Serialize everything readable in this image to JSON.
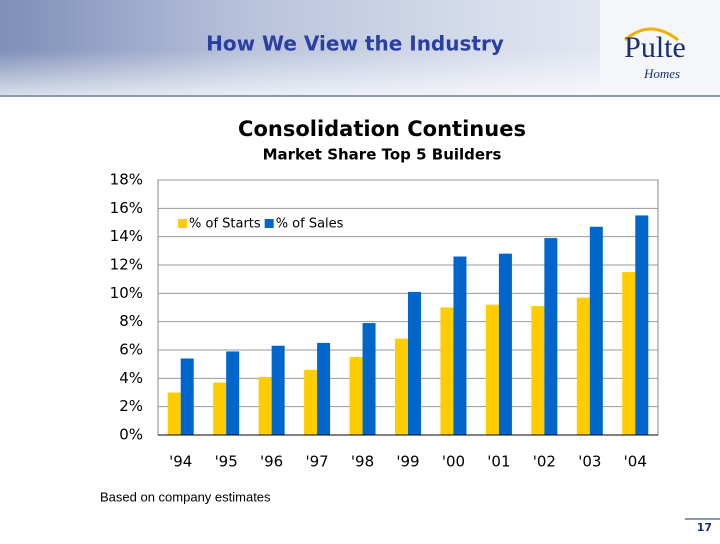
{
  "header": {
    "title": "How We View the Industry",
    "logo_main": "Pulte",
    "logo_sub": "Homes"
  },
  "chart_data": {
    "type": "bar",
    "title": "Consolidation Continues",
    "subtitle": "Market Share Top 5 Builders",
    "categories": [
      "'94",
      "'95",
      "'96",
      "'97",
      "'98",
      "'99",
      "'00",
      "'01",
      "'02",
      "'03",
      "'04"
    ],
    "series": [
      {
        "name": "% of Starts",
        "color": "#ffcc00",
        "values": [
          3.0,
          3.7,
          4.1,
          4.6,
          5.5,
          6.8,
          9.0,
          9.2,
          9.1,
          9.7,
          11.5
        ]
      },
      {
        "name": "% of Sales",
        "color": "#0066cc",
        "values": [
          5.4,
          5.9,
          6.3,
          6.5,
          7.9,
          10.1,
          12.6,
          12.8,
          13.9,
          14.7,
          15.5
        ]
      }
    ],
    "ylim": [
      0,
      18
    ],
    "yticks": [
      {
        "value": 0,
        "label": "0%"
      },
      {
        "value": 2,
        "label": "2%"
      },
      {
        "value": 4,
        "label": "4%"
      },
      {
        "value": 6,
        "label": "6%"
      },
      {
        "value": 8,
        "label": "8%"
      },
      {
        "value": 10,
        "label": "10%"
      },
      {
        "value": 12,
        "label": "12%"
      },
      {
        "value": 14,
        "label": "14%"
      },
      {
        "value": 16,
        "label": "16%"
      },
      {
        "value": 18,
        "label": "18%"
      }
    ],
    "grid": true,
    "legend": "top-left"
  },
  "footnote": "Based on company estimates",
  "page_number": "17"
}
